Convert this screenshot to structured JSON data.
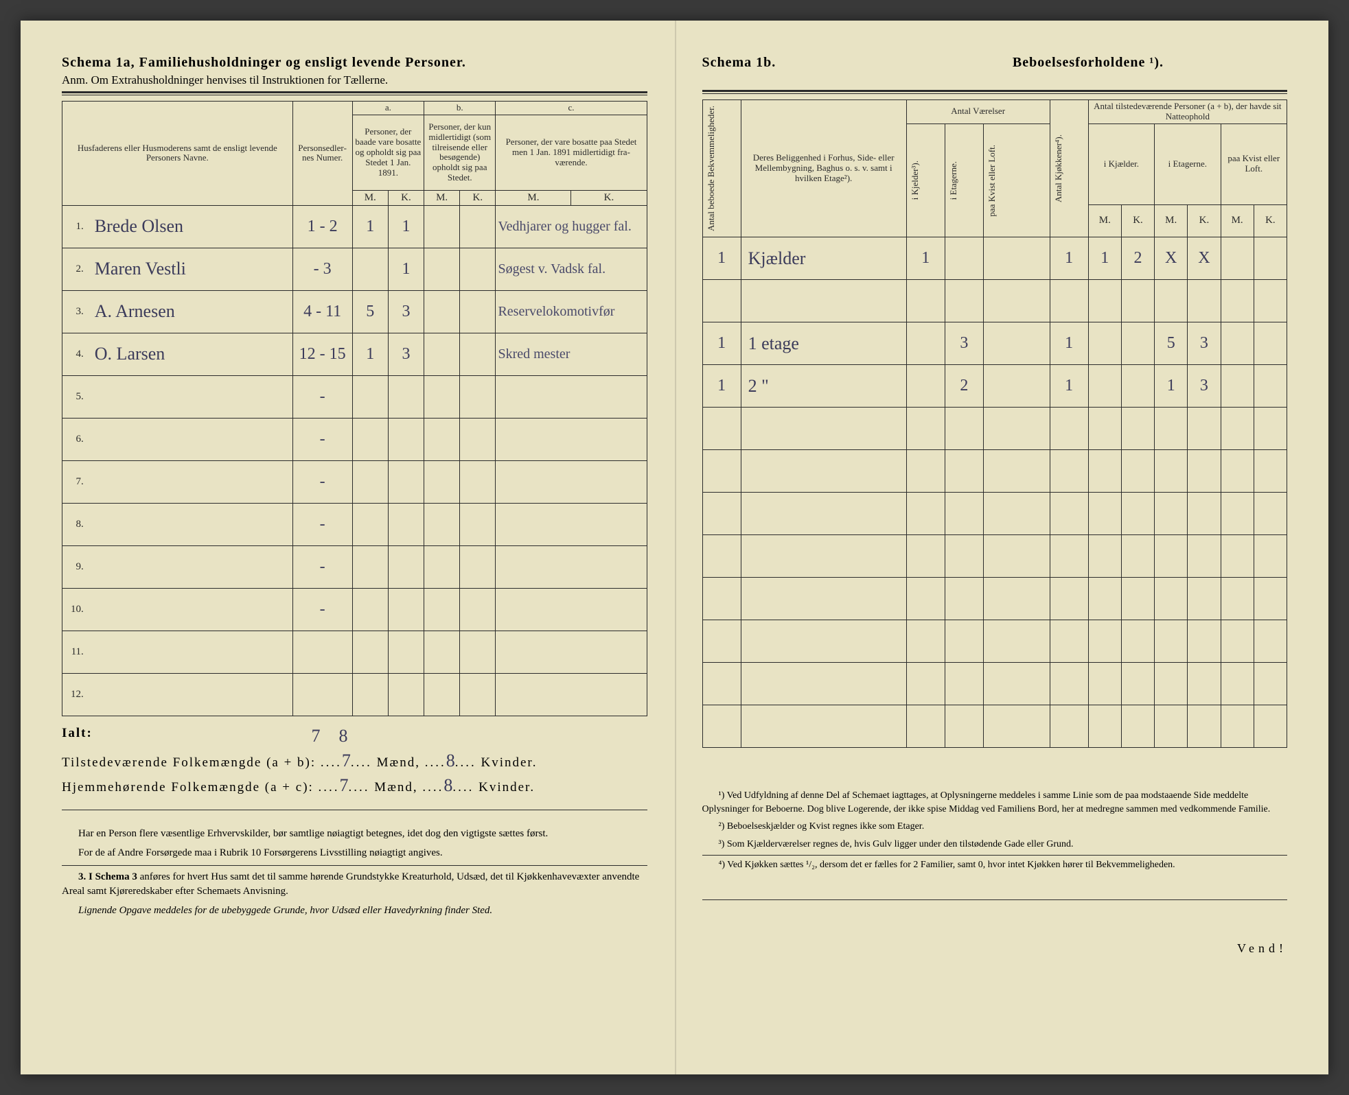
{
  "leftHeader": {
    "title_bold": "Schema 1a,  Familiehusholdninger og ensligt levende Personer.",
    "note_prefix": "Anm.",
    "note": "Om Extrahusholdninger henvises til Instruktionen for Tællerne."
  },
  "rightHeader": {
    "schema": "Schema 1b.",
    "title": "Beboelsesforholdene ¹)."
  },
  "leftCols": {
    "names": "Husfaderens eller Husmode­rens samt de ensligt levende Personers Navne.",
    "personsedler": "Person­sedler­nes Numer.",
    "group_a_letter": "a.",
    "group_a": "Personer, der baade vare bo­satte og opholdt sig paa Stedet 1 Jan. 1891.",
    "group_b_letter": "b.",
    "group_b": "Personer, der kun midler­tidigt (som tilreisende eller besøgende) opholdt sig paa Stedet.",
    "group_c_letter": "c.",
    "group_c": "Personer, der vare bosatte paa Stedet men 1 Jan. 1891 midler­tidigt fra­værende.",
    "M": "M.",
    "K": "K."
  },
  "leftRows": [
    {
      "n": "1.",
      "name": "Brede Olsen",
      "ps": "1 - 2",
      "aM": "1",
      "aK": "1",
      "bM": "",
      "bK": "",
      "cM": "",
      "cK": "",
      "note": "Vedhjarer og hugger fal."
    },
    {
      "n": "2.",
      "name": "Maren Vestli",
      "ps": "- 3",
      "aM": "",
      "aK": "1",
      "bM": "",
      "bK": "",
      "cM": "",
      "cK": "",
      "note": "Søgest v. Vadsk fal."
    },
    {
      "n": "3.",
      "name": "A. Arnesen",
      "ps": "4 - 11",
      "aM": "5",
      "aK": "3",
      "bM": "",
      "bK": "",
      "cM": "",
      "cK": "",
      "note": "Reservelokomotivfør"
    },
    {
      "n": "4.",
      "name": "O. Larsen",
      "ps": "12 - 15",
      "aM": "1",
      "aK": "3",
      "bM": "",
      "bK": "",
      "cM": "",
      "cK": "",
      "note": "Skred mester"
    },
    {
      "n": "5.",
      "name": "",
      "ps": "-",
      "aM": "",
      "aK": "",
      "bM": "",
      "bK": "",
      "cM": "",
      "cK": "",
      "note": ""
    },
    {
      "n": "6.",
      "name": "",
      "ps": "-",
      "aM": "",
      "aK": "",
      "bM": "",
      "bK": "",
      "cM": "",
      "cK": "",
      "note": ""
    },
    {
      "n": "7.",
      "name": "",
      "ps": "-",
      "aM": "",
      "aK": "",
      "bM": "",
      "bK": "",
      "cM": "",
      "cK": "",
      "note": ""
    },
    {
      "n": "8.",
      "name": "",
      "ps": "-",
      "aM": "",
      "aK": "",
      "bM": "",
      "bK": "",
      "cM": "",
      "cK": "",
      "note": ""
    },
    {
      "n": "9.",
      "name": "",
      "ps": "-",
      "aM": "",
      "aK": "",
      "bM": "",
      "bK": "",
      "cM": "",
      "cK": "",
      "note": ""
    },
    {
      "n": "10.",
      "name": "",
      "ps": "-",
      "aM": "",
      "aK": "",
      "bM": "",
      "bK": "",
      "cM": "",
      "cK": "",
      "note": ""
    },
    {
      "n": "11.",
      "name": "",
      "ps": "",
      "aM": "",
      "aK": "",
      "bM": "",
      "bK": "",
      "cM": "",
      "cK": "",
      "note": ""
    },
    {
      "n": "12.",
      "name": "",
      "ps": "",
      "aM": "",
      "aK": "",
      "bM": "",
      "bK": "",
      "cM": "",
      "cK": "",
      "note": ""
    }
  ],
  "totals": {
    "ialt": "Ialt:",
    "corr_m": "7",
    "corr_k": "8",
    "line1_label": "Tilstedeværende Folkemængde (a + b):",
    "line1_m": "7",
    "line1_k": "8",
    "line2_label": "Hjemmehørende Folkemængde (a + c):",
    "line2_m": "7",
    "line2_k": "8",
    "maend": "Mænd,",
    "kvinder": "Kvinder."
  },
  "leftSmallprint": {
    "p1": "Har en Person flere væsentlige Erhvervskilder, bør samtlige nøiagtigt betegnes, idet dog den vigtigste sættes først.",
    "p2": "For de af Andre Forsørgede maa i Rubrik 10 Forsørgerens Livsstilling nøiagtigt angives.",
    "p3_lead": "3. I Schema 3",
    "p3": " anføres for hvert Hus samt det til samme hørende Grund­stykke Kreaturhold, Udsæd, det til Kjøkkenhavevæxter anvendte Areal samt Kjøreredskaber efter Schemaets Anvisning.",
    "p4": "Lignende Opgave meddeles for de ubebyggede Grunde, hvor Udsæd eller Havedyrkning finder Sted."
  },
  "rightCols": {
    "bekv": "Antal beboede Bekvemmeligheder.",
    "belig": "Deres Beliggenhed i Forhus, Side- eller Mellembygning, Baghus o. s. v. samt i hvilken Etage²).",
    "vaerelser": "Antal Værelser",
    "kjelder": "i Kjelder³).",
    "etager": "i Etagerne.",
    "kvist": "paa Kvist eller Loft.",
    "kjokken": "Antal Kjøkkener⁴).",
    "natt_hdr": "Antal tilstedeværende Personer (a + b), der havde sit Natteophold",
    "natt_kj": "i Kjæl­der.",
    "natt_et": "i Etagerne.",
    "natt_kv": "paa Kvist eller Loft.",
    "M": "M.",
    "K": "K."
  },
  "rightRows": [
    {
      "bekv": "1",
      "belig": "Kjælder",
      "kj": "1",
      "et": "",
      "kv": "",
      "kk": "1",
      "nkjM": "1",
      "nkjK": "2",
      "netM": "X",
      "netK": "X",
      "nkvM": "",
      "nkvK": ""
    },
    {
      "bekv": "",
      "belig": "",
      "kj": "",
      "et": "",
      "kv": "",
      "kk": "",
      "nkjM": "",
      "nkjK": "",
      "netM": "",
      "netK": "",
      "nkvM": "",
      "nkvK": ""
    },
    {
      "bekv": "1",
      "belig": "1 etage",
      "kj": "",
      "et": "3",
      "kv": "",
      "kk": "1",
      "nkjM": "",
      "nkjK": "",
      "netM": "5",
      "netK": "3",
      "nkvM": "",
      "nkvK": ""
    },
    {
      "bekv": "1",
      "belig": "2   \"",
      "kj": "",
      "et": "2",
      "kv": "",
      "kk": "1",
      "nkjM": "",
      "nkjK": "",
      "netM": "1",
      "netK": "3",
      "nkvM": "",
      "nkvK": ""
    },
    {
      "bekv": "",
      "belig": "",
      "kj": "",
      "et": "",
      "kv": "",
      "kk": "",
      "nkjM": "",
      "nkjK": "",
      "netM": "",
      "netK": "",
      "nkvM": "",
      "nkvK": ""
    },
    {
      "bekv": "",
      "belig": "",
      "kj": "",
      "et": "",
      "kv": "",
      "kk": "",
      "nkjM": "",
      "nkjK": "",
      "netM": "",
      "netK": "",
      "nkvM": "",
      "nkvK": ""
    },
    {
      "bekv": "",
      "belig": "",
      "kj": "",
      "et": "",
      "kv": "",
      "kk": "",
      "nkjM": "",
      "nkjK": "",
      "netM": "",
      "netK": "",
      "nkvM": "",
      "nkvK": ""
    },
    {
      "bekv": "",
      "belig": "",
      "kj": "",
      "et": "",
      "kv": "",
      "kk": "",
      "nkjM": "",
      "nkjK": "",
      "netM": "",
      "netK": "",
      "nkvM": "",
      "nkvK": ""
    },
    {
      "bekv": "",
      "belig": "",
      "kj": "",
      "et": "",
      "kv": "",
      "kk": "",
      "nkjM": "",
      "nkjK": "",
      "netM": "",
      "netK": "",
      "nkvM": "",
      "nkvK": ""
    },
    {
      "bekv": "",
      "belig": "",
      "kj": "",
      "et": "",
      "kv": "",
      "kk": "",
      "nkjM": "",
      "nkjK": "",
      "netM": "",
      "netK": "",
      "nkvM": "",
      "nkvK": ""
    },
    {
      "bekv": "",
      "belig": "",
      "kj": "",
      "et": "",
      "kv": "",
      "kk": "",
      "nkjM": "",
      "nkjK": "",
      "netM": "",
      "netK": "",
      "nkvM": "",
      "nkvK": ""
    },
    {
      "bekv": "",
      "belig": "",
      "kj": "",
      "et": "",
      "kv": "",
      "kk": "",
      "nkjM": "",
      "nkjK": "",
      "netM": "",
      "netK": "",
      "nkvM": "",
      "nkvK": ""
    }
  ],
  "footnotes": {
    "f1": "¹) Ved Udfyldning af denne Del af Schemaet iagttages, at Oplysningerne meddeles i samme Linie som de paa modstaaende Side meddelte Oplysninger for Beboerne. Dog blive Logerende, der ikke spise Middag ved Familiens Bord, her at medregne sammen med vedkommende Familie.",
    "f2": "²) Beboelseskjælder og Kvist regnes ikke som Etager.",
    "f3": "³) Som Kjælderværelser regnes de, hvis Gulv ligger under den tilstødende Gade eller Grund.",
    "f4": "⁴) Ved Kjøkken sættes ¹/₂, dersom det er fælles for 2 Familier, samt 0, hvor intet Kjøkken hører til Bekvemmeligheden."
  },
  "vend": "Vend!",
  "colors": {
    "ink": "#2b2b2b",
    "hand": "#3b3b5a",
    "paper": "#e8e3c4"
  }
}
